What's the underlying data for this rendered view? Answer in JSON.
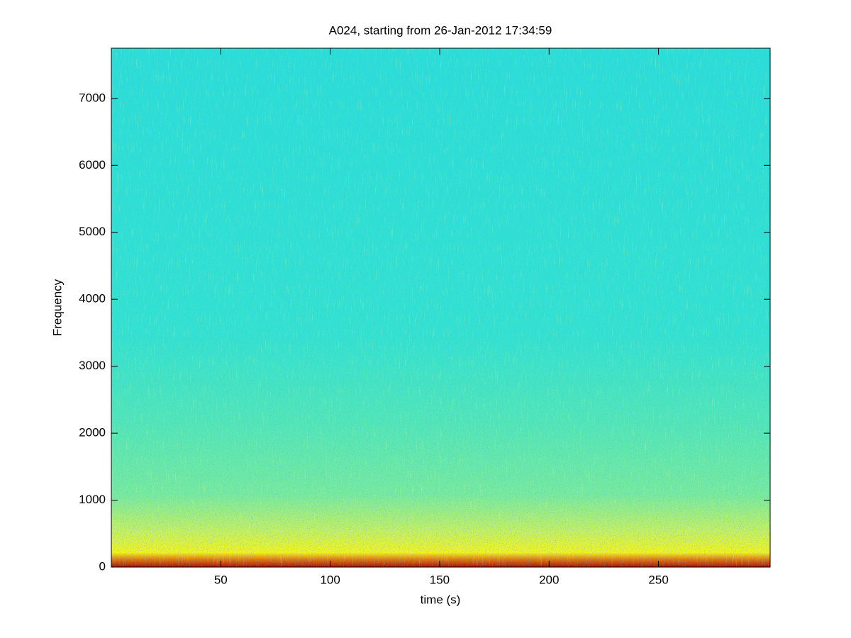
{
  "chart_data": {
    "type": "spectrogram",
    "title": "A024, starting from 26-Jan-2012 17:34:59",
    "x_label": "time (s)",
    "y_label": "Frequency",
    "xlim": [
      0,
      301
    ],
    "ylim": [
      0,
      7750
    ],
    "xticks": [
      50,
      100,
      150,
      200,
      250
    ],
    "yticks": [
      0,
      1000,
      2000,
      3000,
      4000,
      5000,
      6000,
      7000
    ],
    "grid": false
  }
}
